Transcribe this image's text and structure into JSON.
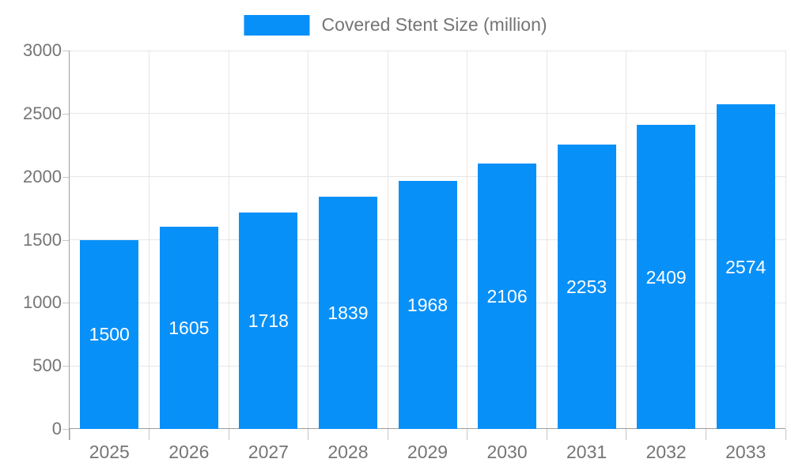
{
  "chart_data": {
    "type": "bar",
    "title": "Covered Stent Size (million)",
    "categories": [
      "2025",
      "2026",
      "2027",
      "2028",
      "2029",
      "2030",
      "2031",
      "2032",
      "2033"
    ],
    "series": [
      {
        "name": "Covered Stent Size (million)",
        "values": [
          1500,
          1605,
          1718,
          1839,
          1968,
          2106,
          2253,
          2409,
          2574
        ]
      }
    ],
    "xlabel": "",
    "ylabel": "",
    "ylim": [
      0,
      3000
    ],
    "yticks": [
      0,
      500,
      1000,
      1500,
      2000,
      2500,
      3000
    ],
    "grid": true,
    "legend_position": "top",
    "value_labels_position": "inside-center"
  },
  "colors": {
    "bar": "#0890f9",
    "grid": "#e6e6e6",
    "axis": "#9e9e9e",
    "tick": "#c6c6c6",
    "label": "#757575",
    "value_label": "#ffffff",
    "background": "#ffffff"
  }
}
